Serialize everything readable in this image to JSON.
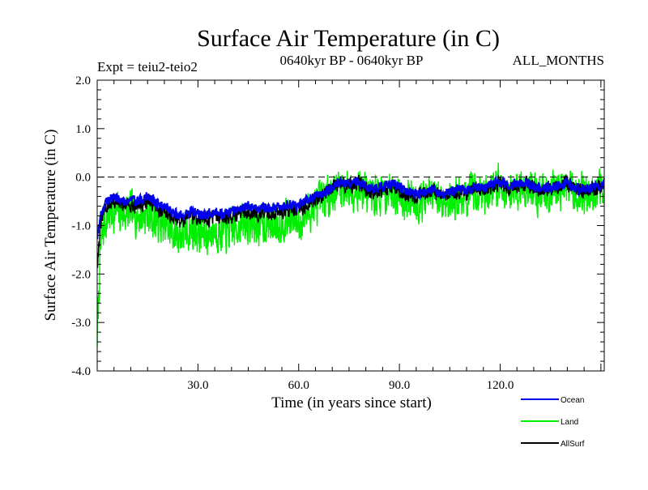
{
  "chart_data": {
    "type": "line",
    "title": "Surface Air Temperature (in C)",
    "subtitle_left": "Expt = teiu2-teio2",
    "subtitle_center": "0640kyr BP - 0640kyr BP",
    "subtitle_right": "ALL_MONTHS",
    "xlabel": "Time (in years since start)",
    "ylabel": "Surface Air Temperature (in C)",
    "xlim": [
      0,
      151
    ],
    "ylim": [
      -4.0,
      2.0
    ],
    "xticks": [
      30,
      60,
      90,
      120
    ],
    "xtick_labels": [
      "30.0",
      "60.0",
      "90.0",
      "120.0"
    ],
    "yticks": [
      2,
      1,
      0,
      -1,
      -2,
      -3,
      -4
    ],
    "ytick_labels": [
      "2.0",
      "1.0",
      "0.0",
      "-1.0",
      "-2.0",
      "-3.0",
      "-4.0"
    ],
    "reference_line": 0.0,
    "grid": false,
    "legend_position": "bottom-right, below plot",
    "series": [
      {
        "name": "Ocean",
        "color": "#0000ee",
        "x": [
          0,
          1,
          2,
          3,
          5,
          8,
          10,
          12,
          15,
          18,
          20,
          22,
          25,
          28,
          30,
          32,
          35,
          38,
          40,
          42,
          45,
          48,
          50,
          52,
          55,
          58,
          60,
          62,
          65,
          68,
          70,
          72,
          75,
          78,
          80,
          82,
          85,
          88,
          90,
          92,
          95,
          98,
          100,
          102,
          105,
          108,
          110,
          112,
          115,
          118,
          120,
          122,
          125,
          128,
          130,
          132,
          135,
          138,
          140,
          142,
          145,
          148,
          151
        ],
        "values": [
          -1.2,
          -0.8,
          -0.6,
          -0.5,
          -0.4,
          -0.5,
          -0.45,
          -0.5,
          -0.4,
          -0.55,
          -0.6,
          -0.7,
          -0.8,
          -0.7,
          -0.75,
          -0.8,
          -0.7,
          -0.75,
          -0.7,
          -0.65,
          -0.6,
          -0.65,
          -0.6,
          -0.65,
          -0.6,
          -0.55,
          -0.6,
          -0.5,
          -0.4,
          -0.3,
          -0.2,
          -0.1,
          -0.15,
          -0.1,
          -0.2,
          -0.25,
          -0.2,
          -0.15,
          -0.2,
          -0.3,
          -0.35,
          -0.3,
          -0.25,
          -0.35,
          -0.3,
          -0.25,
          -0.3,
          -0.2,
          -0.25,
          -0.15,
          -0.1,
          -0.2,
          -0.15,
          -0.1,
          -0.2,
          -0.25,
          -0.2,
          -0.15,
          -0.1,
          -0.2,
          -0.25,
          -0.2,
          -0.15
        ]
      },
      {
        "name": "Land",
        "color": "#00ee00",
        "x": [
          0,
          1,
          2,
          3,
          5,
          8,
          10,
          12,
          15,
          18,
          20,
          22,
          25,
          28,
          30,
          32,
          35,
          38,
          40,
          42,
          45,
          48,
          50,
          52,
          55,
          58,
          60,
          62,
          65,
          68,
          70,
          72,
          75,
          78,
          80,
          82,
          85,
          88,
          90,
          92,
          95,
          98,
          100,
          102,
          105,
          108,
          110,
          112,
          115,
          118,
          120,
          122,
          125,
          128,
          130,
          132,
          135,
          138,
          140,
          142,
          145,
          148,
          151
        ],
        "values": [
          -3.3,
          -1.5,
          -1.0,
          -0.8,
          -0.7,
          -0.75,
          -0.7,
          -0.8,
          -0.75,
          -0.9,
          -1.0,
          -1.1,
          -1.2,
          -1.1,
          -1.15,
          -1.2,
          -1.1,
          -1.15,
          -1.1,
          -1.0,
          -0.95,
          -1.0,
          -0.95,
          -1.0,
          -0.9,
          -0.85,
          -0.95,
          -0.8,
          -0.6,
          -0.45,
          -0.3,
          -0.2,
          -0.25,
          -0.2,
          -0.3,
          -0.4,
          -0.35,
          -0.3,
          -0.35,
          -0.45,
          -0.5,
          -0.45,
          -0.4,
          -0.5,
          -0.45,
          -0.4,
          -0.45,
          -0.3,
          -0.35,
          -0.2,
          -0.15,
          -0.3,
          -0.25,
          -0.2,
          -0.3,
          -0.35,
          -0.3,
          -0.25,
          -0.2,
          -0.3,
          -0.35,
          -0.3,
          -0.25
        ],
        "variability": 0.6
      },
      {
        "name": "AllSurf",
        "color": "#000000",
        "x": [
          0,
          1,
          2,
          3,
          5,
          8,
          10,
          12,
          15,
          18,
          20,
          22,
          25,
          28,
          30,
          32,
          35,
          38,
          40,
          42,
          45,
          48,
          50,
          52,
          55,
          58,
          60,
          62,
          65,
          68,
          70,
          72,
          75,
          78,
          80,
          82,
          85,
          88,
          90,
          92,
          95,
          98,
          100,
          102,
          105,
          108,
          110,
          112,
          115,
          118,
          120,
          122,
          125,
          128,
          130,
          132,
          135,
          138,
          140,
          142,
          145,
          148,
          151
        ],
        "values": [
          -1.8,
          -1.0,
          -0.7,
          -0.6,
          -0.5,
          -0.6,
          -0.55,
          -0.6,
          -0.5,
          -0.65,
          -0.7,
          -0.8,
          -0.9,
          -0.8,
          -0.85,
          -0.9,
          -0.8,
          -0.85,
          -0.8,
          -0.75,
          -0.7,
          -0.75,
          -0.7,
          -0.75,
          -0.7,
          -0.65,
          -0.7,
          -0.6,
          -0.45,
          -0.35,
          -0.22,
          -0.13,
          -0.18,
          -0.13,
          -0.23,
          -0.3,
          -0.25,
          -0.2,
          -0.25,
          -0.35,
          -0.4,
          -0.35,
          -0.3,
          -0.4,
          -0.35,
          -0.3,
          -0.35,
          -0.23,
          -0.28,
          -0.17,
          -0.12,
          -0.23,
          -0.18,
          -0.13,
          -0.23,
          -0.28,
          -0.23,
          -0.18,
          -0.13,
          -0.23,
          -0.28,
          -0.23,
          -0.18
        ]
      }
    ]
  }
}
